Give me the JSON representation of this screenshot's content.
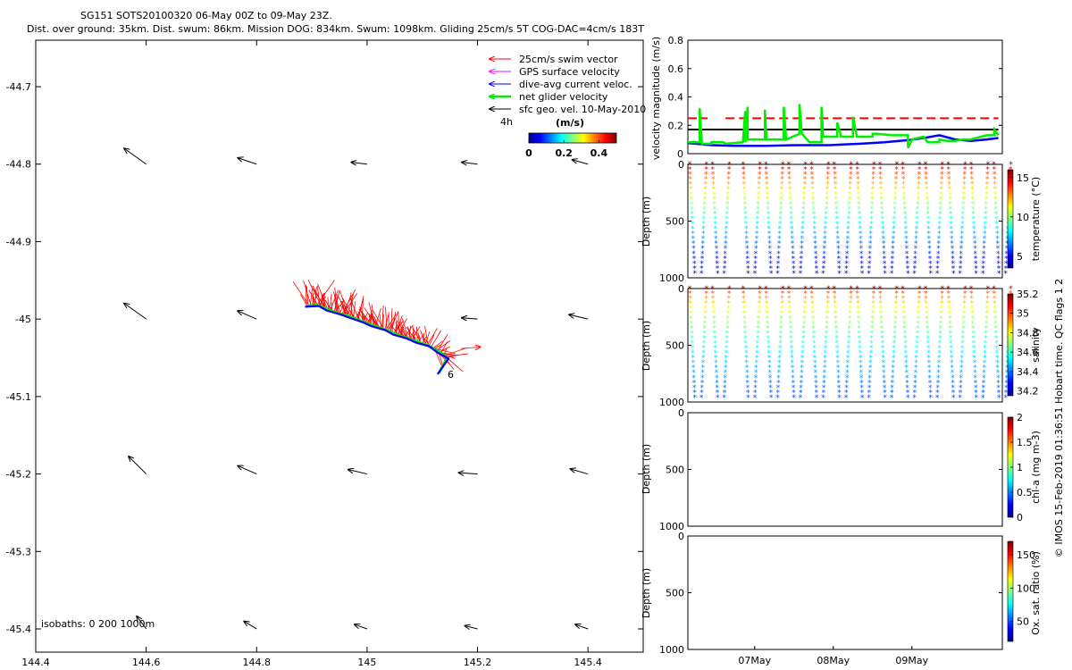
{
  "figure": {
    "title_line1": "SG151 SOTS20100320 06-May 00Z to 09-May 23Z.",
    "title_line2": "Dist. over ground: 35km. Dist. swum: 86km. Mission DOG: 834km. Swum: 1098km. Gliding 25cm/s 5T COG-DAC=4cm/s 183T",
    "side_label": "© IMOS 15-Feb-2019 01:36:51 Hobart time. QC flags 1  2",
    "colors": {
      "swim": "#ff0000",
      "gps": "#ff00ff",
      "dac": "#0000ff",
      "net": "#00ee00",
      "sfc": "#000000"
    }
  },
  "chart_data": [
    {
      "type": "scatter",
      "name": "map",
      "xlim": [
        144.4,
        145.5
      ],
      "ylim": [
        -45.43,
        -44.64
      ],
      "xticks": [
        144.4,
        144.6,
        144.8,
        145,
        145.2,
        145.4
      ],
      "xtick_labels": [
        "144.4",
        "144.6",
        "144.8",
        "145",
        "145.2",
        "145.4"
      ],
      "yticks": [
        -44.7,
        -44.8,
        -44.9,
        -45,
        -45.1,
        -45.2,
        -45.3,
        -45.4
      ],
      "ytick_labels": [
        "-44.7",
        "-44.8",
        "-44.9",
        "-45",
        "-45.1",
        "-45.2",
        "-45.3",
        "-45.4"
      ],
      "legend": [
        {
          "label": "25cm/s swim vector",
          "color": "#ff0000"
        },
        {
          "label": "GPS surface velocity",
          "color": "#ff00ff"
        },
        {
          "label": "dive-avg current veloc.",
          "color": "#0000ff"
        },
        {
          "label": "net glider velocity",
          "color": "#00ee00"
        },
        {
          "label": "sfc geo. vel. 10-May-2010",
          "color": "#000000"
        }
      ],
      "legend_position": "top-right",
      "colorbar": {
        "title": "(m/s)",
        "side_label": "4h",
        "ticks": [
          0,
          0.2,
          0.4
        ],
        "tick_labels": [
          "0",
          "0.2",
          "0.4"
        ],
        "range": [
          0,
          0.5
        ]
      },
      "isobaths_label": "isobaths: 0   200  1000m",
      "track_label": "6",
      "track": [
        [
          144.89,
          -44.983
        ],
        [
          144.91,
          -44.982
        ],
        [
          144.93,
          -44.988
        ],
        [
          144.95,
          -44.993
        ],
        [
          144.97,
          -44.997
        ],
        [
          144.99,
          -45.003
        ],
        [
          145.01,
          -45.008
        ],
        [
          145.03,
          -45.013
        ],
        [
          145.05,
          -45.019
        ],
        [
          145.07,
          -45.024
        ],
        [
          145.09,
          -45.029
        ],
        [
          145.11,
          -45.034
        ],
        [
          145.13,
          -45.042
        ],
        [
          145.145,
          -45.05
        ],
        [
          145.13,
          -45.07
        ]
      ],
      "geo_vectors": [
        {
          "lon": 144.6,
          "lat": -44.8,
          "u": -0.35,
          "v": 0.25
        },
        {
          "lon": 144.8,
          "lat": -44.8,
          "u": -0.3,
          "v": 0.1
        },
        {
          "lon": 145.0,
          "lat": -44.8,
          "u": -0.25,
          "v": 0.03
        },
        {
          "lon": 145.2,
          "lat": -44.8,
          "u": -0.25,
          "v": 0.03
        },
        {
          "lon": 145.4,
          "lat": -44.8,
          "u": -0.25,
          "v": 0.07
        },
        {
          "lon": 144.6,
          "lat": -45.0,
          "u": -0.35,
          "v": 0.25
        },
        {
          "lon": 144.8,
          "lat": -45.0,
          "u": -0.3,
          "v": 0.13
        },
        {
          "lon": 145.2,
          "lat": -45.0,
          "u": -0.25,
          "v": 0.02
        },
        {
          "lon": 145.4,
          "lat": -45.0,
          "u": -0.3,
          "v": 0.07
        },
        {
          "lon": 144.6,
          "lat": -45.2,
          "u": -0.28,
          "v": 0.28
        },
        {
          "lon": 144.8,
          "lat": -45.2,
          "u": -0.3,
          "v": 0.13
        },
        {
          "lon": 145.0,
          "lat": -45.2,
          "u": -0.3,
          "v": 0.07
        },
        {
          "lon": 145.2,
          "lat": -45.2,
          "u": -0.3,
          "v": 0.02
        },
        {
          "lon": 145.4,
          "lat": -45.2,
          "u": -0.28,
          "v": 0.08
        },
        {
          "lon": 144.6,
          "lat": -45.4,
          "u": -0.15,
          "v": 0.2
        },
        {
          "lon": 144.8,
          "lat": -45.4,
          "u": -0.2,
          "v": 0.12
        },
        {
          "lon": 145.0,
          "lat": -45.4,
          "u": -0.2,
          "v": 0.07
        },
        {
          "lon": 145.2,
          "lat": -45.4,
          "u": -0.2,
          "v": 0.05
        },
        {
          "lon": 145.4,
          "lat": -45.4,
          "u": -0.2,
          "v": 0.07
        }
      ]
    },
    {
      "type": "line",
      "name": "velocity",
      "ylabel": "velocity magnitude (m/s)",
      "xlim": [
        0,
        4
      ],
      "ylim": [
        0,
        0.8
      ],
      "yticks": [
        0,
        0.2,
        0.4,
        0.6,
        0.8
      ],
      "ytick_labels": [
        "0",
        "0.2",
        "0.4",
        "0.6",
        "0.8"
      ],
      "series": [
        {
          "name": "swim",
          "color": "#ff0000",
          "style": "dashed",
          "segments": [
            [
              [
                0.0,
                0.25
              ],
              [
                0.25,
                0.25
              ]
            ],
            [
              [
                0.48,
                0.25
              ],
              [
                3.95,
                0.25
              ]
            ]
          ]
        },
        {
          "name": "sfc",
          "color": "#000000",
          "style": "solid",
          "x": [
            0.0,
            3.95
          ],
          "y": [
            0.17,
            0.17
          ]
        },
        {
          "name": "dac",
          "color": "#0000ff",
          "style": "solid",
          "x": [
            0.0,
            0.3,
            0.6,
            1.0,
            1.4,
            1.8,
            2.0,
            2.2,
            2.5,
            2.8,
            3.0,
            3.2,
            3.4,
            3.6,
            3.8,
            3.95
          ],
          "y": [
            0.075,
            0.06,
            0.055,
            0.055,
            0.06,
            0.06,
            0.065,
            0.07,
            0.08,
            0.095,
            0.11,
            0.13,
            0.1,
            0.09,
            0.1,
            0.11
          ]
        },
        {
          "name": "net",
          "color": "#00ee00",
          "style": "solid",
          "x": [
            0.0,
            0.15,
            0.15,
            0.18,
            0.18,
            0.3,
            0.3,
            0.45,
            0.48,
            0.7,
            0.73,
            0.73,
            0.76,
            0.76,
            0.98,
            0.98,
            1.0,
            1.0,
            1.22,
            1.22,
            1.25,
            1.25,
            1.42,
            1.42,
            1.45,
            1.45,
            1.55,
            1.7,
            1.7,
            1.72,
            1.72,
            1.9,
            1.9,
            1.95,
            2.1,
            2.1,
            2.15,
            2.35,
            2.35,
            2.4,
            2.6,
            2.8,
            2.8,
            2.85,
            3.0,
            3.05,
            3.2,
            3.2,
            3.3,
            3.4,
            3.5,
            3.6,
            3.8,
            3.9,
            3.9,
            3.95
          ],
          "y": [
            0.08,
            0.08,
            0.32,
            0.06,
            0.07,
            0.07,
            0.08,
            0.08,
            0.07,
            0.08,
            0.3,
            0.08,
            0.33,
            0.1,
            0.1,
            0.31,
            0.1,
            0.1,
            0.1,
            0.33,
            0.1,
            0.1,
            0.14,
            0.35,
            0.14,
            0.14,
            0.08,
            0.08,
            0.33,
            0.12,
            0.12,
            0.12,
            0.22,
            0.12,
            0.12,
            0.26,
            0.12,
            0.12,
            0.14,
            0.14,
            0.13,
            0.13,
            0.04,
            0.1,
            0.12,
            0.08,
            0.08,
            0.1,
            0.09,
            0.09,
            0.1,
            0.1,
            0.13,
            0.13,
            0.17,
            0.13
          ]
        }
      ]
    },
    {
      "type": "scatter",
      "name": "temperature",
      "ylabel": "Depth (m)",
      "xlim": [
        0,
        4
      ],
      "ylim": [
        0,
        1000
      ],
      "yticks": [
        0,
        500,
        1000
      ],
      "ytick_labels": [
        "0",
        "500",
        "1000"
      ],
      "colorbar": {
        "label": "temperature (°C)",
        "range": [
          3.5,
          16
        ],
        "ticks": [
          5,
          10,
          15
        ],
        "tick_labels": [
          "5",
          "10",
          "15"
        ]
      },
      "dive_times": [
        0.0,
        0.29,
        0.68,
        0.97,
        1.26,
        1.55,
        1.84,
        2.13,
        2.42,
        2.71,
        3.0,
        3.29,
        3.58,
        3.87
      ],
      "dive_half_width_days": 0.13,
      "max_depth": 960,
      "value_top": 16,
      "value_bottom": 4
    },
    {
      "type": "scatter",
      "name": "salinity",
      "ylabel": "Depth (m)",
      "xlim": [
        0,
        4
      ],
      "ylim": [
        0,
        1000
      ],
      "yticks": [
        0,
        500,
        1000
      ],
      "ytick_labels": [
        "0",
        "500",
        "1000"
      ],
      "colorbar": {
        "label": "salinity",
        "range": [
          34.15,
          35.2
        ],
        "ticks": [
          34.2,
          34.4,
          34.6,
          34.8,
          35,
          35.2
        ],
        "tick_labels": [
          "34.2",
          "34.4",
          "34.6",
          "34.8",
          "35",
          "35.2"
        ]
      },
      "dive_times": [
        0.0,
        0.29,
        0.68,
        0.97,
        1.26,
        1.55,
        1.84,
        2.13,
        2.42,
        2.71,
        3.0,
        3.29,
        3.58,
        3.87
      ],
      "dive_half_width_days": 0.13,
      "max_depth": 960,
      "value_top": 35.2,
      "value_bottom": 34.35
    },
    {
      "type": "scatter",
      "name": "chla",
      "ylabel": "Depth (m)",
      "xlim": [
        0,
        4
      ],
      "ylim": [
        0,
        1000
      ],
      "yticks": [
        0,
        500,
        1000
      ],
      "ytick_labels": [
        "0",
        "500",
        "1000"
      ],
      "colorbar": {
        "label": "chl-a (mg m-3)",
        "range": [
          0,
          2
        ],
        "ticks": [
          0,
          0.5,
          1,
          1.5,
          2
        ],
        "tick_labels": [
          "0",
          "0.5",
          "1",
          "1.5",
          "2"
        ]
      }
    },
    {
      "type": "scatter",
      "name": "oxygen",
      "ylabel": "Depth (m)",
      "xlim": [
        0,
        4
      ],
      "ylim": [
        0,
        1000
      ],
      "yticks": [
        0,
        500,
        1000
      ],
      "ytick_labels": [
        "0",
        "500",
        "1000"
      ],
      "xticks": [
        0.85,
        1.85,
        2.85
      ],
      "xtick_labels": [
        "07May",
        "08May",
        "09May"
      ],
      "colorbar": {
        "label": "Ox. sat. ratio (%)",
        "range": [
          20,
          170
        ],
        "ticks": [
          50,
          100,
          150
        ],
        "tick_labels": [
          "50",
          "100",
          "150"
        ]
      }
    }
  ]
}
